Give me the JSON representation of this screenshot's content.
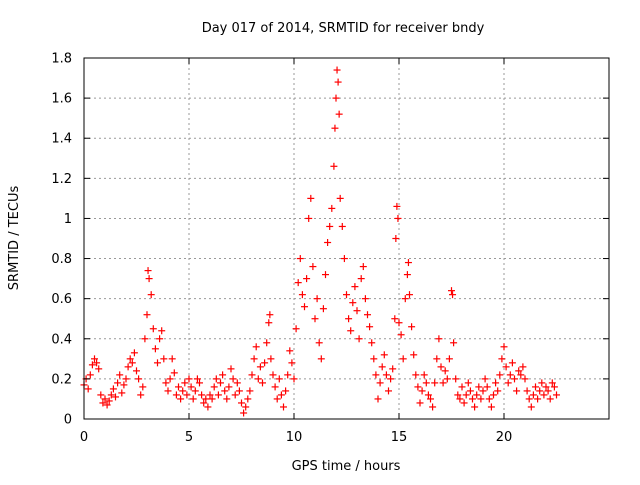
{
  "chart_data": {
    "type": "scatter",
    "title": "Day 017 of 2014, SRMTID for receiver bndy",
    "xlabel": "GPS time / hours",
    "ylabel": "SRMTID / TECUs",
    "xlim": [
      0,
      25
    ],
    "ylim": [
      0,
      1.8
    ],
    "xticks": [
      0,
      5,
      10,
      15,
      20
    ],
    "yticks": [
      0,
      0.2,
      0.4,
      0.6,
      0.8,
      1,
      1.2,
      1.4,
      1.6,
      1.8
    ],
    "xtick_labels": [
      "0",
      "5",
      "10",
      "15",
      "20"
    ],
    "ytick_labels": [
      "0",
      "0.2",
      "0.4",
      "0.6",
      "0.8",
      "1",
      "1.2",
      "1.4",
      "1.6",
      "1.8"
    ],
    "grid": true,
    "marker": "+",
    "series": [
      {
        "name": "SRMTID",
        "color": "#ff0000",
        "points": [
          [
            0.0,
            0.17
          ],
          [
            0.1,
            0.2
          ],
          [
            0.2,
            0.15
          ],
          [
            0.3,
            0.22
          ],
          [
            0.4,
            0.27
          ],
          [
            0.5,
            0.3
          ],
          [
            0.6,
            0.28
          ],
          [
            0.7,
            0.25
          ],
          [
            0.8,
            0.12
          ],
          [
            0.9,
            0.08
          ],
          [
            1.0,
            0.1
          ],
          [
            1.1,
            0.07
          ],
          [
            1.2,
            0.09
          ],
          [
            1.3,
            0.12
          ],
          [
            1.4,
            0.15
          ],
          [
            1.5,
            0.11
          ],
          [
            1.6,
            0.18
          ],
          [
            1.7,
            0.22
          ],
          [
            1.8,
            0.13
          ],
          [
            1.9,
            0.17
          ],
          [
            2.0,
            0.2
          ],
          [
            2.1,
            0.26
          ],
          [
            2.2,
            0.3
          ],
          [
            2.3,
            0.28
          ],
          [
            2.4,
            0.33
          ],
          [
            2.5,
            0.24
          ],
          [
            2.6,
            0.2
          ],
          [
            2.7,
            0.12
          ],
          [
            2.8,
            0.16
          ],
          [
            2.9,
            0.4
          ],
          [
            3.0,
            0.52
          ],
          [
            3.05,
            0.74
          ],
          [
            3.1,
            0.7
          ],
          [
            3.2,
            0.62
          ],
          [
            3.3,
            0.45
          ],
          [
            3.4,
            0.35
          ],
          [
            3.5,
            0.28
          ],
          [
            3.6,
            0.4
          ],
          [
            3.7,
            0.44
          ],
          [
            3.8,
            0.3
          ],
          [
            3.9,
            0.18
          ],
          [
            4.0,
            0.14
          ],
          [
            4.1,
            0.2
          ],
          [
            4.2,
            0.3
          ],
          [
            4.3,
            0.23
          ],
          [
            4.4,
            0.12
          ],
          [
            4.5,
            0.16
          ],
          [
            4.6,
            0.1
          ],
          [
            4.7,
            0.14
          ],
          [
            4.8,
            0.18
          ],
          [
            4.9,
            0.12
          ],
          [
            5.0,
            0.2
          ],
          [
            5.1,
            0.16
          ],
          [
            5.2,
            0.1
          ],
          [
            5.3,
            0.14
          ],
          [
            5.4,
            0.2
          ],
          [
            5.5,
            0.18
          ],
          [
            5.6,
            0.12
          ],
          [
            5.7,
            0.08
          ],
          [
            5.8,
            0.1
          ],
          [
            5.9,
            0.06
          ],
          [
            6.0,
            0.12
          ],
          [
            6.1,
            0.1
          ],
          [
            6.2,
            0.16
          ],
          [
            6.3,
            0.2
          ],
          [
            6.4,
            0.12
          ],
          [
            6.5,
            0.18
          ],
          [
            6.6,
            0.22
          ],
          [
            6.7,
            0.14
          ],
          [
            6.8,
            0.1
          ],
          [
            6.9,
            0.16
          ],
          [
            7.0,
            0.25
          ],
          [
            7.1,
            0.2
          ],
          [
            7.2,
            0.12
          ],
          [
            7.3,
            0.18
          ],
          [
            7.4,
            0.14
          ],
          [
            7.5,
            0.08
          ],
          [
            7.6,
            0.03
          ],
          [
            7.7,
            0.06
          ],
          [
            7.8,
            0.1
          ],
          [
            7.9,
            0.14
          ],
          [
            8.0,
            0.22
          ],
          [
            8.1,
            0.3
          ],
          [
            8.2,
            0.36
          ],
          [
            8.3,
            0.2
          ],
          [
            8.4,
            0.26
          ],
          [
            8.5,
            0.18
          ],
          [
            8.6,
            0.28
          ],
          [
            8.7,
            0.38
          ],
          [
            8.8,
            0.48
          ],
          [
            8.85,
            0.52
          ],
          [
            8.9,
            0.3
          ],
          [
            9.0,
            0.22
          ],
          [
            9.1,
            0.16
          ],
          [
            9.2,
            0.1
          ],
          [
            9.3,
            0.2
          ],
          [
            9.4,
            0.12
          ],
          [
            9.5,
            0.06
          ],
          [
            9.6,
            0.14
          ],
          [
            9.7,
            0.22
          ],
          [
            9.8,
            0.34
          ],
          [
            9.9,
            0.28
          ],
          [
            10.0,
            0.2
          ],
          [
            10.1,
            0.45
          ],
          [
            10.2,
            0.68
          ],
          [
            10.3,
            0.8
          ],
          [
            10.4,
            0.62
          ],
          [
            10.5,
            0.56
          ],
          [
            10.6,
            0.7
          ],
          [
            10.7,
            1.0
          ],
          [
            10.8,
            1.1
          ],
          [
            10.9,
            0.76
          ],
          [
            11.0,
            0.5
          ],
          [
            11.1,
            0.6
          ],
          [
            11.2,
            0.38
          ],
          [
            11.3,
            0.3
          ],
          [
            11.4,
            0.55
          ],
          [
            11.5,
            0.72
          ],
          [
            11.6,
            0.88
          ],
          [
            11.7,
            0.96
          ],
          [
            11.8,
            1.05
          ],
          [
            11.9,
            1.26
          ],
          [
            11.95,
            1.45
          ],
          [
            12.0,
            1.6
          ],
          [
            12.05,
            1.74
          ],
          [
            12.1,
            1.68
          ],
          [
            12.15,
            1.52
          ],
          [
            12.2,
            1.1
          ],
          [
            12.3,
            0.96
          ],
          [
            12.4,
            0.8
          ],
          [
            12.5,
            0.62
          ],
          [
            12.6,
            0.5
          ],
          [
            12.7,
            0.44
          ],
          [
            12.8,
            0.58
          ],
          [
            12.9,
            0.66
          ],
          [
            13.0,
            0.54
          ],
          [
            13.1,
            0.4
          ],
          [
            13.2,
            0.7
          ],
          [
            13.3,
            0.76
          ],
          [
            13.4,
            0.6
          ],
          [
            13.5,
            0.52
          ],
          [
            13.6,
            0.46
          ],
          [
            13.7,
            0.38
          ],
          [
            13.8,
            0.3
          ],
          [
            13.9,
            0.22
          ],
          [
            14.0,
            0.1
          ],
          [
            14.1,
            0.18
          ],
          [
            14.2,
            0.26
          ],
          [
            14.3,
            0.32
          ],
          [
            14.4,
            0.22
          ],
          [
            14.5,
            0.14
          ],
          [
            14.6,
            0.2
          ],
          [
            14.7,
            0.25
          ],
          [
            14.8,
            0.5
          ],
          [
            14.85,
            0.9
          ],
          [
            14.9,
            1.06
          ],
          [
            14.95,
            1.0
          ],
          [
            15.0,
            0.48
          ],
          [
            15.1,
            0.42
          ],
          [
            15.2,
            0.3
          ],
          [
            15.3,
            0.6
          ],
          [
            15.4,
            0.72
          ],
          [
            15.45,
            0.78
          ],
          [
            15.5,
            0.62
          ],
          [
            15.6,
            0.46
          ],
          [
            15.7,
            0.32
          ],
          [
            15.8,
            0.22
          ],
          [
            15.9,
            0.16
          ],
          [
            16.0,
            0.08
          ],
          [
            16.1,
            0.14
          ],
          [
            16.2,
            0.22
          ],
          [
            16.3,
            0.18
          ],
          [
            16.4,
            0.12
          ],
          [
            16.5,
            0.1
          ],
          [
            16.6,
            0.06
          ],
          [
            16.7,
            0.18
          ],
          [
            16.8,
            0.3
          ],
          [
            16.9,
            0.4
          ],
          [
            17.0,
            0.26
          ],
          [
            17.1,
            0.18
          ],
          [
            17.2,
            0.24
          ],
          [
            17.3,
            0.2
          ],
          [
            17.4,
            0.3
          ],
          [
            17.5,
            0.64
          ],
          [
            17.55,
            0.62
          ],
          [
            17.6,
            0.38
          ],
          [
            17.7,
            0.2
          ],
          [
            17.8,
            0.12
          ],
          [
            17.9,
            0.1
          ],
          [
            18.0,
            0.16
          ],
          [
            18.1,
            0.08
          ],
          [
            18.2,
            0.12
          ],
          [
            18.3,
            0.18
          ],
          [
            18.4,
            0.14
          ],
          [
            18.5,
            0.1
          ],
          [
            18.6,
            0.06
          ],
          [
            18.7,
            0.12
          ],
          [
            18.8,
            0.16
          ],
          [
            18.9,
            0.1
          ],
          [
            19.0,
            0.14
          ],
          [
            19.1,
            0.2
          ],
          [
            19.2,
            0.16
          ],
          [
            19.3,
            0.1
          ],
          [
            19.4,
            0.06
          ],
          [
            19.5,
            0.12
          ],
          [
            19.6,
            0.18
          ],
          [
            19.7,
            0.14
          ],
          [
            19.8,
            0.22
          ],
          [
            19.9,
            0.3
          ],
          [
            20.0,
            0.36
          ],
          [
            20.1,
            0.26
          ],
          [
            20.2,
            0.18
          ],
          [
            20.3,
            0.22
          ],
          [
            20.4,
            0.28
          ],
          [
            20.5,
            0.2
          ],
          [
            20.6,
            0.14
          ],
          [
            20.7,
            0.24
          ],
          [
            20.8,
            0.22
          ],
          [
            20.9,
            0.26
          ],
          [
            21.0,
            0.2
          ],
          [
            21.1,
            0.14
          ],
          [
            21.2,
            0.1
          ],
          [
            21.3,
            0.06
          ],
          [
            21.4,
            0.12
          ],
          [
            21.5,
            0.16
          ],
          [
            21.6,
            0.1
          ],
          [
            21.7,
            0.14
          ],
          [
            21.8,
            0.18
          ],
          [
            21.9,
            0.12
          ],
          [
            22.0,
            0.16
          ],
          [
            22.1,
            0.14
          ],
          [
            22.2,
            0.1
          ],
          [
            22.3,
            0.18
          ],
          [
            22.4,
            0.16
          ],
          [
            22.5,
            0.12
          ]
        ]
      }
    ]
  }
}
